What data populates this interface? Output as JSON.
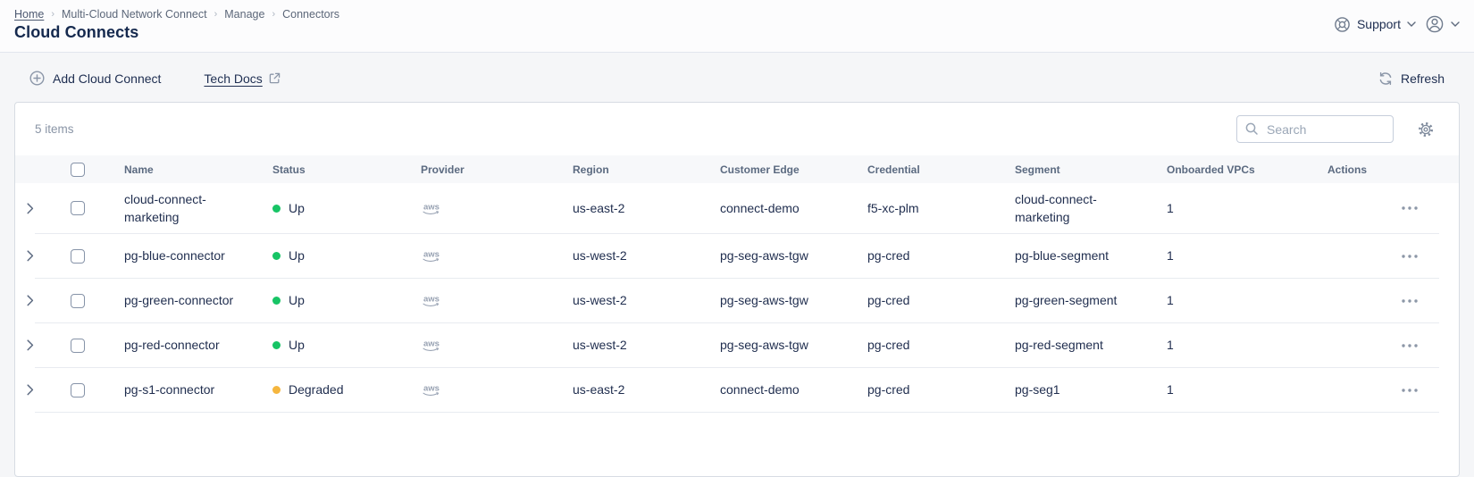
{
  "breadcrumb": {
    "items": [
      "Home",
      "Multi-Cloud Network Connect",
      "Manage",
      "Connectors"
    ]
  },
  "header": {
    "title": "Cloud Connects",
    "support_label": "Support"
  },
  "toolbar": {
    "add_label": "Add Cloud Connect",
    "docs_label": "Tech Docs",
    "refresh_label": "Refresh"
  },
  "table": {
    "items_count": "5 items",
    "search_placeholder": "Search",
    "columns": [
      "Name",
      "Status",
      "Provider",
      "Region",
      "Customer Edge",
      "Credential",
      "Segment",
      "Onboarded VPCs",
      "Actions"
    ],
    "rows": [
      {
        "name": "cloud-connect-marketing",
        "status": "Up",
        "provider": "aws",
        "region": "us-east-2",
        "customer_edge": "connect-demo",
        "credential": "f5-xc-plm",
        "segment": "cloud-connect-marketing",
        "onboarded_vpcs": "1"
      },
      {
        "name": "pg-blue-connector",
        "status": "Up",
        "provider": "aws",
        "region": "us-west-2",
        "customer_edge": "pg-seg-aws-tgw",
        "credential": "pg-cred",
        "segment": "pg-blue-segment",
        "onboarded_vpcs": "1"
      },
      {
        "name": "pg-green-connector",
        "status": "Up",
        "provider": "aws",
        "region": "us-west-2",
        "customer_edge": "pg-seg-aws-tgw",
        "credential": "pg-cred",
        "segment": "pg-green-segment",
        "onboarded_vpcs": "1"
      },
      {
        "name": "pg-red-connector",
        "status": "Up",
        "provider": "aws",
        "region": "us-west-2",
        "customer_edge": "pg-seg-aws-tgw",
        "credential": "pg-cred",
        "segment": "pg-red-segment",
        "onboarded_vpcs": "1"
      },
      {
        "name": "pg-s1-connector",
        "status": "Degraded",
        "provider": "aws",
        "region": "us-east-2",
        "customer_edge": "connect-demo",
        "credential": "pg-cred",
        "segment": "pg-seg1",
        "onboarded_vpcs": "1"
      }
    ]
  },
  "icons": {
    "top_right": [
      "support-lifebuoy-icon",
      "caret-down-icon",
      "user-avatar-icon",
      "caret-down-icon"
    ],
    "toolbar": [
      "plus-circle-icon",
      "external-link-icon",
      "refresh-icon"
    ],
    "table": [
      "search-icon",
      "gear-icon",
      "chevron-right-icon",
      "aws-logo",
      "ellipsis-icon"
    ]
  },
  "colors": {
    "status_up": "#17c465",
    "status_degraded": "#f5b63e",
    "text_primary": "#1f2d4e",
    "text_muted": "#8a95a6",
    "icon_gray": "#8b96a8",
    "card_border": "#d7dce3",
    "header_bg": "#f7f8fa"
  }
}
